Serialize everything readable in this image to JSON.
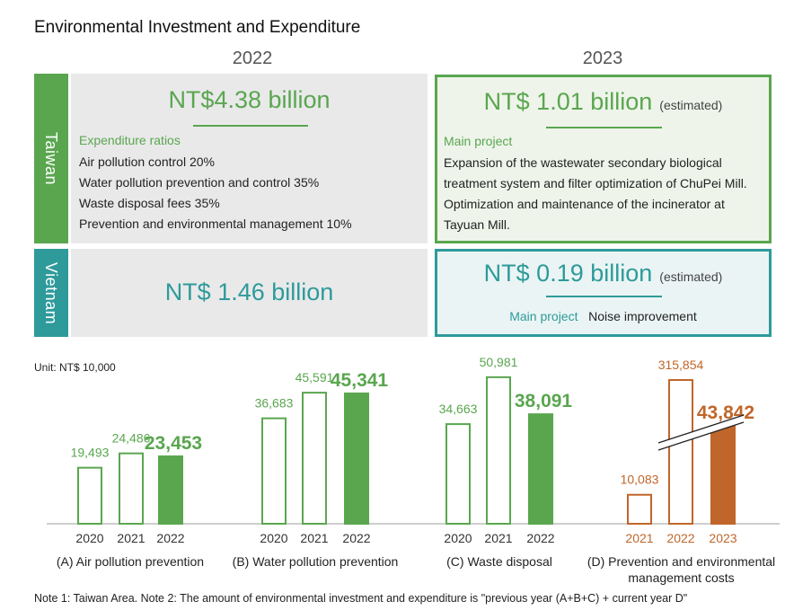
{
  "title": "Environmental Investment and Expenditure",
  "years": {
    "left": "2022",
    "right": "2023"
  },
  "colors": {
    "green": "#5aa64f",
    "teal": "#2e9a9a",
    "orange": "#c0662a",
    "panel_gray": "#e9e9ea",
    "panel_green_bg": "#eef4ea",
    "panel_teal_bg": "#eaf4f4"
  },
  "taiwan": {
    "label": "Taiwan",
    "y2022": {
      "amount": "NT$4.38 billion",
      "subtitle": "Expenditure ratios",
      "lines": [
        "Air pollution control 20%",
        "Water pollution prevention and control 35%",
        "Waste disposal fees 35%",
        "Prevention and environmental management 10%"
      ]
    },
    "y2023": {
      "amount": "NT$ 1.01 billion",
      "estimated": "(estimated)",
      "subtitle": "Main project",
      "lines": [
        "Expansion of the wastewater secondary biological",
        "treatment system and filter optimization of ChuPei Mill.",
        "Optimization and maintenance of the incinerator at",
        "Tayuan Mill."
      ]
    }
  },
  "vietnam": {
    "label": "Vietnam",
    "y2022": {
      "amount": "NT$ 1.46 billion"
    },
    "y2023": {
      "amount": "NT$ 0.19 billion",
      "estimated": "(estimated)",
      "project_label": "Main project",
      "project_value": "Noise improvement"
    }
  },
  "unit": "Unit: NT$ 10,000",
  "footnote": "Note 1: Taiwan Area. Note 2: The amount of environmental investment and expenditure is \"previous year (A+B+C) + current year D\"",
  "chart_data": {
    "type": "bar",
    "unit": "NT$ 10,000",
    "groups": [
      {
        "name": "(A) Air pollution prevention",
        "name_lines": [
          "(A) Air pollution prevention"
        ],
        "color": "#5aa64f",
        "categories": [
          "2020",
          "2021",
          "2022"
        ],
        "values": [
          19493,
          24486,
          23453
        ],
        "labels": [
          "19,493",
          "24,486",
          "23,453"
        ],
        "filled": [
          false,
          false,
          true
        ],
        "broken": [
          false,
          false,
          false
        ]
      },
      {
        "name": "(B) Water pollution prevention",
        "name_lines": [
          "(B) Water pollution prevention"
        ],
        "color": "#5aa64f",
        "categories": [
          "2020",
          "2021",
          "2022"
        ],
        "values": [
          36683,
          45591,
          45341
        ],
        "labels": [
          "36,683",
          "45,591",
          "45,341"
        ],
        "filled": [
          false,
          false,
          true
        ],
        "broken": [
          false,
          false,
          false
        ]
      },
      {
        "name": "(C) Waste disposal",
        "name_lines": [
          "(C) Waste disposal"
        ],
        "color": "#5aa64f",
        "categories": [
          "2020",
          "2021",
          "2022"
        ],
        "values": [
          34663,
          50981,
          38091
        ],
        "labels": [
          "34,663",
          "50,981",
          "38,091"
        ],
        "filled": [
          false,
          false,
          true
        ],
        "broken": [
          false,
          false,
          false
        ]
      },
      {
        "name": "(D) Prevention and environmental management costs",
        "name_lines": [
          "(D) Prevention and environmental",
          "management costs"
        ],
        "color": "#c0662a",
        "categories": [
          "2021",
          "2022",
          "2023"
        ],
        "values": [
          10083,
          315854,
          43842
        ],
        "labels": [
          "10,083",
          "315,854",
          "43,842"
        ],
        "filled": [
          false,
          false,
          true
        ],
        "broken": [
          false,
          true,
          true
        ]
      }
    ]
  }
}
